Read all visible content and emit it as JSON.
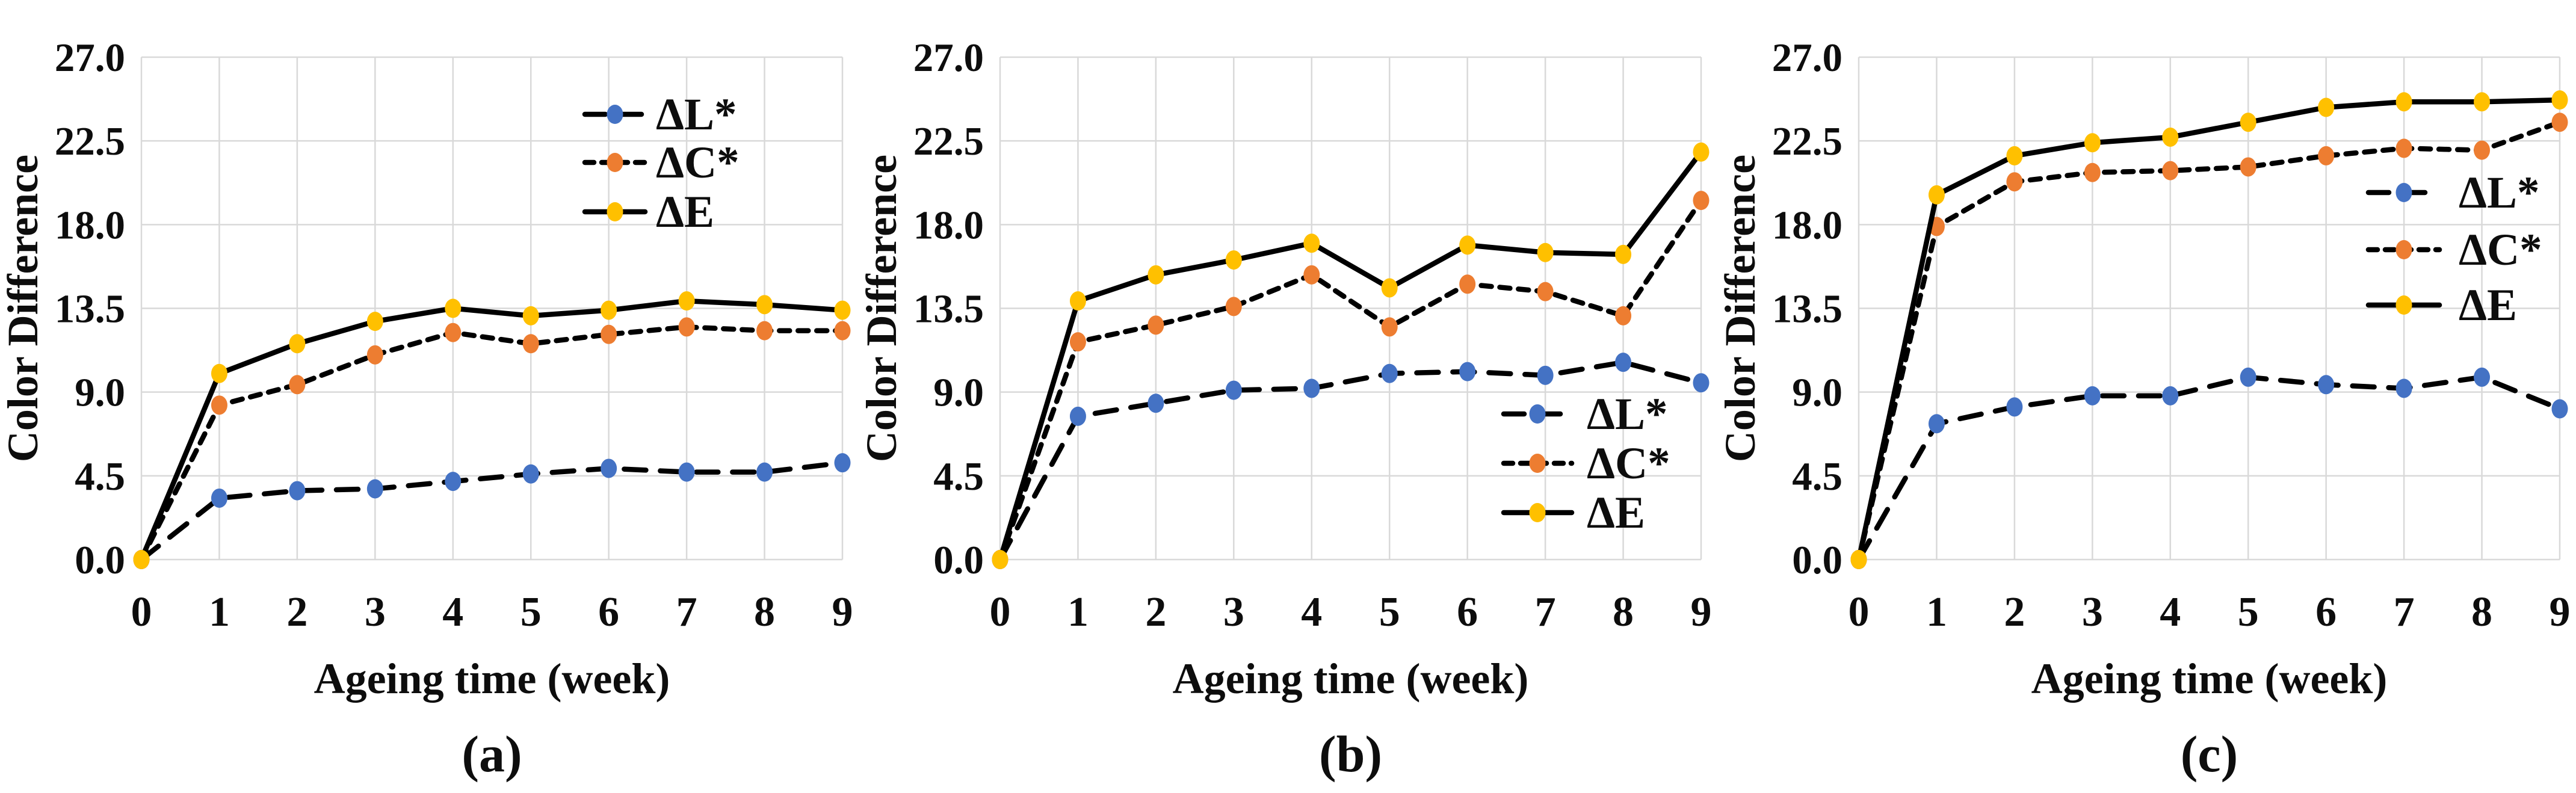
{
  "figure": {
    "description": "Three line charts of color difference versus ageing time",
    "panel_captions": [
      "(a)",
      "(b)",
      "(c)"
    ]
  },
  "chart_data": [
    {
      "type": "line",
      "panel_label": "(a)",
      "xlabel": "Ageing time (week)",
      "ylabel": "Color Difference",
      "x": [
        0,
        1,
        2,
        3,
        4,
        5,
        6,
        7,
        8,
        9
      ],
      "xtick_labels": [
        "0",
        "1",
        "2",
        "3",
        "4",
        "5",
        "6",
        "7",
        "8",
        "9"
      ],
      "ytick_values": [
        0,
        4.5,
        9,
        13.5,
        18,
        22.5,
        27
      ],
      "ytick_labels": [
        "0.0",
        "4.5",
        "9.0",
        "13.5",
        "18.0",
        "22.5",
        "27.0"
      ],
      "ylim": [
        0,
        27
      ],
      "grid": true,
      "grid_color": "#d9d9d9",
      "line_color": "#000000",
      "legend_position": "top-right",
      "series": [
        {
          "name": "ΔL*",
          "marker_color": "#4472C4",
          "line_style": "dashed",
          "values": [
            0,
            3.3,
            3.7,
            3.8,
            4.2,
            4.6,
            4.9,
            4.7,
            4.7,
            5.2
          ]
        },
        {
          "name": "ΔC*",
          "marker_color": "#ED7D31",
          "line_style": "dotted",
          "values": [
            0,
            8.3,
            9.4,
            11.0,
            12.2,
            11.6,
            12.1,
            12.5,
            12.3,
            12.3
          ]
        },
        {
          "name": "ΔE",
          "marker_color": "#FFC000",
          "line_style": "solid",
          "values": [
            0,
            10.0,
            11.6,
            12.8,
            13.5,
            13.1,
            13.4,
            13.9,
            13.7,
            13.4
          ]
        }
      ]
    },
    {
      "type": "line",
      "panel_label": "(b)",
      "xlabel": "Ageing time (week)",
      "ylabel": "Color Difference",
      "x": [
        0,
        1,
        2,
        3,
        4,
        5,
        6,
        7,
        8,
        9
      ],
      "xtick_labels": [
        "0",
        "1",
        "2",
        "3",
        "4",
        "5",
        "6",
        "7",
        "8",
        "9"
      ],
      "ytick_values": [
        0,
        4.5,
        9,
        13.5,
        18,
        22.5,
        27
      ],
      "ytick_labels": [
        "0.0",
        "4.5",
        "9.0",
        "13.5",
        "18.0",
        "22.5",
        "27.0"
      ],
      "ylim": [
        0,
        27
      ],
      "grid": true,
      "grid_color": "#d9d9d9",
      "line_color": "#000000",
      "legend_position": "bottom-right",
      "series": [
        {
          "name": "ΔL*",
          "marker_color": "#4472C4",
          "line_style": "dashed",
          "values": [
            0,
            7.7,
            8.4,
            9.1,
            9.2,
            10.0,
            10.1,
            9.9,
            10.6,
            9.5
          ]
        },
        {
          "name": "ΔC*",
          "marker_color": "#ED7D31",
          "line_style": "dotted",
          "values": [
            0,
            11.7,
            12.6,
            13.6,
            15.3,
            12.5,
            14.8,
            14.4,
            13.1,
            19.3
          ]
        },
        {
          "name": "ΔE",
          "marker_color": "#FFC000",
          "line_style": "solid",
          "values": [
            0,
            13.9,
            15.3,
            16.1,
            17.0,
            14.6,
            16.9,
            16.5,
            16.4,
            21.9
          ]
        }
      ]
    },
    {
      "type": "line",
      "panel_label": "(c)",
      "xlabel": "Ageing time (week)",
      "ylabel": "Color Difference",
      "x": [
        0,
        1,
        2,
        3,
        4,
        5,
        6,
        7,
        8,
        9
      ],
      "xtick_labels": [
        "0",
        "1",
        "2",
        "3",
        "4",
        "5",
        "6",
        "7",
        "8",
        "9"
      ],
      "ytick_values": [
        0,
        4.5,
        9,
        13.5,
        18,
        22.5,
        27
      ],
      "ytick_labels": [
        "0.0",
        "4.5",
        "9.0",
        "13.5",
        "18.0",
        "22.5",
        "27.0"
      ],
      "ylim": [
        0,
        27
      ],
      "grid": true,
      "grid_color": "#d9d9d9",
      "line_color": "#000000",
      "legend_position": "middle-right",
      "series": [
        {
          "name": "ΔL*",
          "marker_color": "#4472C4",
          "line_style": "dashed",
          "values": [
            0,
            7.3,
            8.2,
            8.8,
            8.8,
            9.8,
            9.4,
            9.2,
            9.8,
            8.1
          ]
        },
        {
          "name": "ΔC*",
          "marker_color": "#ED7D31",
          "line_style": "dotted",
          "values": [
            0,
            17.9,
            20.3,
            20.8,
            20.9,
            21.1,
            21.7,
            22.1,
            22.0,
            23.5
          ]
        },
        {
          "name": "ΔE",
          "marker_color": "#FFC000",
          "line_style": "solid",
          "values": [
            0,
            19.6,
            21.7,
            22.4,
            22.7,
            23.5,
            24.3,
            24.6,
            24.6,
            24.7
          ]
        }
      ]
    }
  ]
}
